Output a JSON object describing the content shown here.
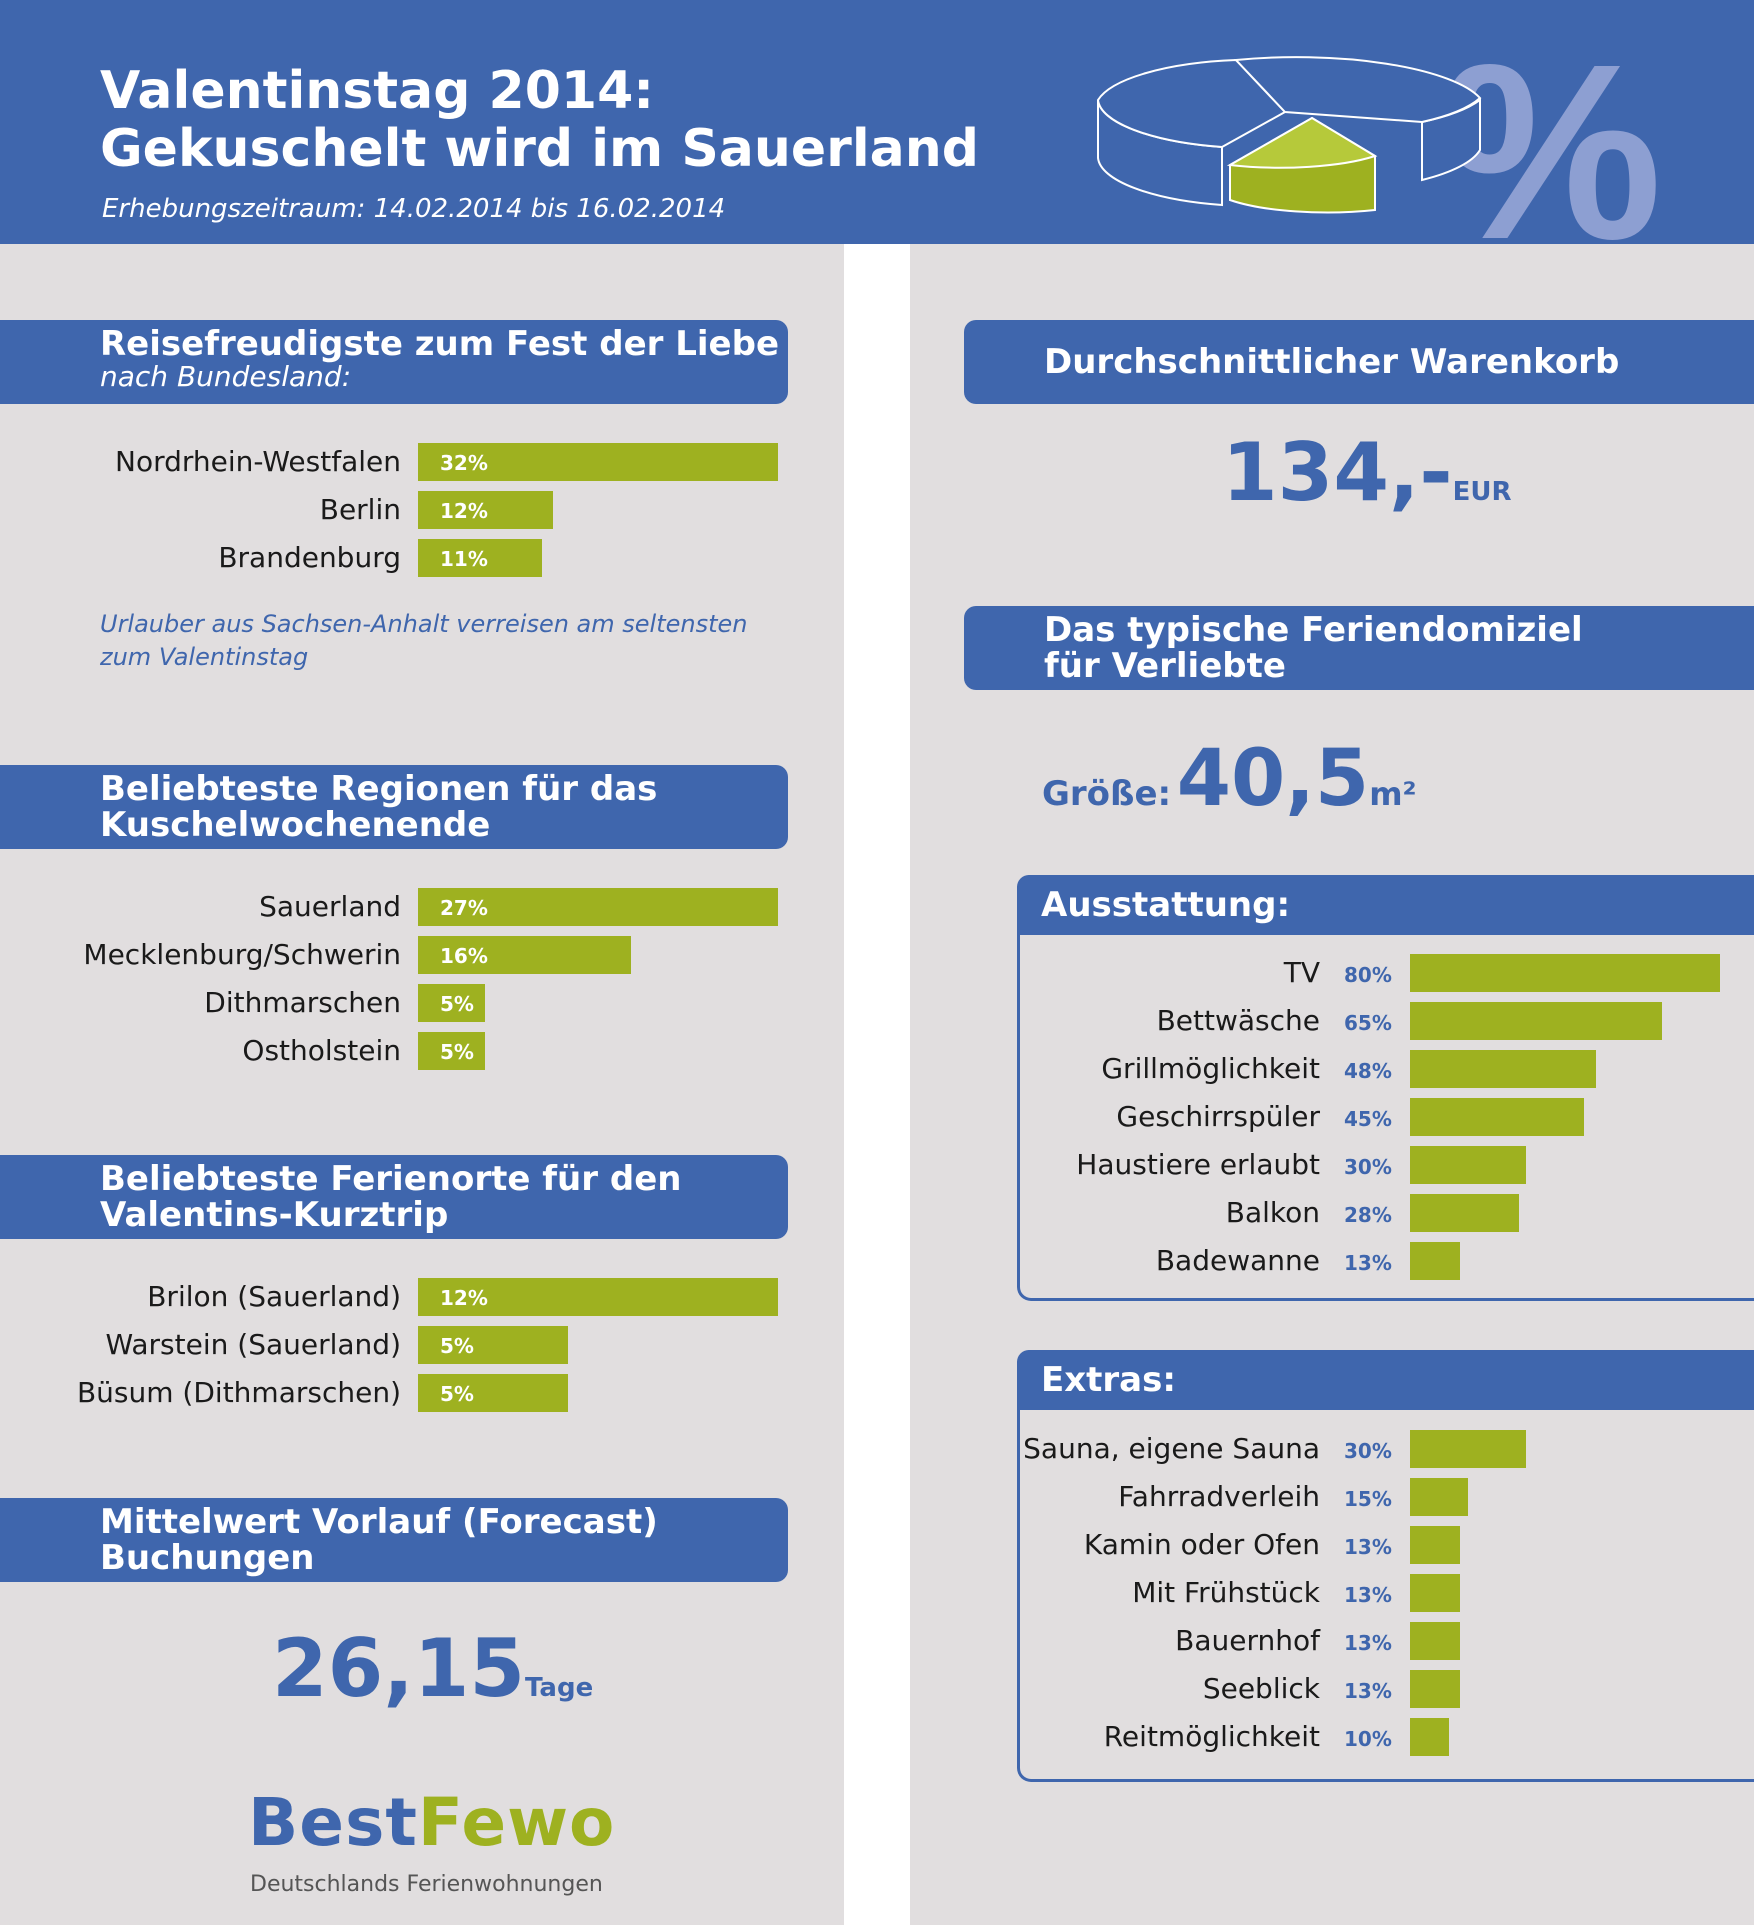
{
  "header": {
    "title_line1": "Valentinstag 2014:",
    "title_line2": "Gekuschelt wird im Sauerland",
    "subtitle": "Erhebungszeitraum: 14.02.2014 bis 16.02.2014",
    "percent_symbol": "%"
  },
  "colors": {
    "blue": "#3f66ad",
    "green": "#9eb120",
    "background": "#e1dedf"
  },
  "sections": {
    "reisefreudig": {
      "title": "Reisefreudigste zum Fest der Liebe",
      "subtitle": "nach Bundesland:"
    },
    "regionen": {
      "title_line1": "Beliebteste Regionen für das",
      "title_line2": "Kuschelwochenende"
    },
    "orte": {
      "title_line1": "Beliebteste Ferienorte für den",
      "title_line2": "Valentins-Kurztrip"
    },
    "vorlauf": {
      "title_line1": "Mittelwert Vorlauf (Forecast)",
      "title_line2": "Buchungen",
      "value": "26,15",
      "unit": "Tage"
    },
    "warenkorb": {
      "title": "Durchschnittlicher Warenkorb",
      "value": "134,-",
      "unit": "EUR"
    },
    "domizil": {
      "title_line1": "Das typische Feriendomiziel",
      "title_line2": "für Verliebte",
      "groesse_label": "Größe:",
      "groesse_value": "40,5",
      "groesse_unit": "m²"
    }
  },
  "note": {
    "line1": "Urlauber aus Sachsen-Anhalt verreisen am seltensten",
    "line2": "zum Valentinstag"
  },
  "chart_data": [
    {
      "id": "bundesland",
      "type": "bar",
      "title": "Reisefreudigste zum Fest der Liebe",
      "categories": [
        "Nordrhein-Westfalen",
        "Berlin",
        "Brandenburg"
      ],
      "values": [
        32,
        12,
        11
      ],
      "labels": [
        "32%",
        "12%",
        "11%"
      ]
    },
    {
      "id": "regionen",
      "type": "bar",
      "title": "Beliebteste Regionen für das Kuschelwochenende",
      "categories": [
        "Sauerland",
        "Mecklenburg/Schwerin",
        "Dithmarschen",
        "Ostholstein"
      ],
      "values": [
        27,
        16,
        5,
        5
      ],
      "labels": [
        "27%",
        "16%",
        "5%",
        "5%"
      ]
    },
    {
      "id": "orte",
      "type": "bar",
      "title": "Beliebteste Ferienorte für den Valentins-Kurztrip",
      "categories": [
        "Brilon (Sauerland)",
        "Warstein (Sauerland)",
        "Büsum (Dithmarschen)"
      ],
      "values": [
        12,
        5,
        5
      ],
      "labels": [
        "12%",
        "5%",
        "5%"
      ]
    },
    {
      "id": "ausstattung",
      "type": "bar",
      "title": "Ausstattung:",
      "categories": [
        "TV",
        "Bettwäsche",
        "Grillmöglichkeit",
        "Geschirrspüler",
        "Haustiere erlaubt",
        "Balkon",
        "Badewanne"
      ],
      "values": [
        80,
        65,
        48,
        45,
        30,
        28,
        13
      ],
      "labels": [
        "80%",
        "65%",
        "48%",
        "45%",
        "30%",
        "28%",
        "13%"
      ]
    },
    {
      "id": "extras",
      "type": "bar",
      "title": "Extras:",
      "categories": [
        "Sauna, eigene Sauna",
        "Fahrradverleih",
        "Kamin oder Ofen",
        "Mit Frühstück",
        "Bauernhof",
        "Seeblick",
        "Reitmöglichkeit"
      ],
      "values": [
        30,
        15,
        13,
        13,
        13,
        13,
        10
      ],
      "labels": [
        "30%",
        "15%",
        "13%",
        "13%",
        "13%",
        "13%",
        "10%"
      ]
    }
  ],
  "logo": {
    "best": "Best",
    "fewo": "Fewo",
    "tagline": "Deutschlands Ferienwohnungen"
  }
}
